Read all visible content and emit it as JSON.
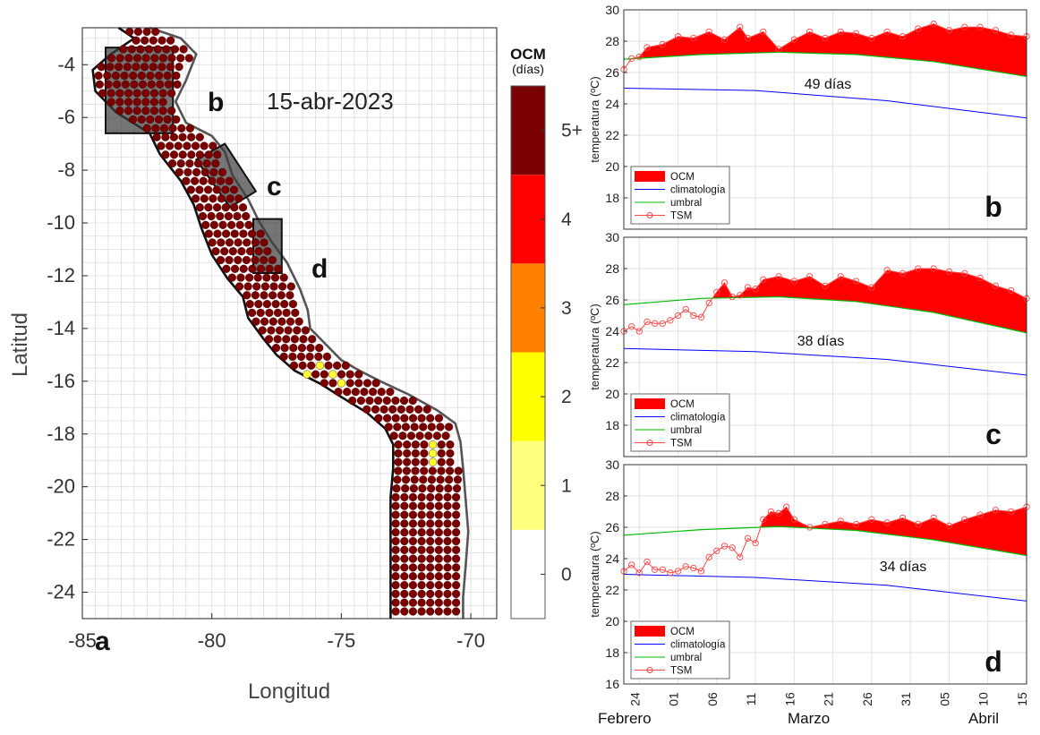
{
  "map": {
    "date_label": "15-abr-2023",
    "panel_letter": "a",
    "xlabel": "Longitud",
    "ylabel": "Latitud",
    "xlim": [
      -85,
      -69
    ],
    "ylim": [
      -25,
      -2.6
    ],
    "xticks": [
      -85,
      -80,
      -75,
      -70
    ],
    "yticks": [
      -4,
      -6,
      -8,
      -10,
      -12,
      -14,
      -16,
      -18,
      -20,
      -22,
      -24
    ],
    "dot_color": "#7a0000",
    "region_labels": [
      "b",
      "c",
      "d"
    ],
    "colorbar": {
      "title": "OCM",
      "subtitle": "(días)",
      "tick_labels": [
        "5+",
        "4",
        "3",
        "2",
        "1",
        "0"
      ],
      "colors": [
        "#ffffff",
        "#ffff80",
        "#ffff00",
        "#ff8000",
        "#ff0000",
        "#7a0000"
      ]
    }
  },
  "chart_data": [
    {
      "type": "area",
      "panel": "b",
      "annotation": "49 días",
      "ylabel": "temperatura (ºC)",
      "ylim": [
        16,
        30
      ],
      "yticks": [
        18,
        20,
        22,
        24,
        26,
        28,
        30
      ],
      "x_start": "2023-02-22",
      "x_end": "2023-04-15",
      "series": [
        {
          "name": "climatología",
          "color": "#0000ff",
          "x": [
            0,
            17,
            34,
            52
          ],
          "values": [
            25.0,
            24.85,
            24.2,
            23.1
          ]
        },
        {
          "name": "umbral",
          "color": "#00bb00",
          "x": [
            0,
            10,
            20,
            30,
            40,
            52
          ],
          "values": [
            26.85,
            27.15,
            27.3,
            27.15,
            26.7,
            25.75
          ]
        },
        {
          "name": "TSM",
          "color": "#ff4444",
          "x": [
            0,
            1,
            2,
            3,
            5,
            7,
            9,
            11,
            13,
            15,
            16,
            18,
            20,
            22,
            24,
            26,
            28,
            30,
            32,
            34,
            36,
            38,
            40,
            42,
            44,
            46,
            48,
            50,
            52
          ],
          "values": [
            26.2,
            26.9,
            27.0,
            27.6,
            27.8,
            28.3,
            28.2,
            28.6,
            28.1,
            28.9,
            28.2,
            28.6,
            27.5,
            28.1,
            28.6,
            28.2,
            28.6,
            28.5,
            28.2,
            28.6,
            28.3,
            28.8,
            29.1,
            28.7,
            28.9,
            28.9,
            28.7,
            28.4,
            28.3
          ]
        }
      ],
      "legend": [
        "OCM",
        "climatología",
        "umbral",
        "TSM"
      ]
    },
    {
      "type": "area",
      "panel": "c",
      "annotation": "38 días",
      "ylabel": "temperatura (ºC)",
      "ylim": [
        16,
        30
      ],
      "yticks": [
        18,
        20,
        22,
        24,
        26,
        28,
        30
      ],
      "x_start": "2023-02-22",
      "x_end": "2023-04-15",
      "series": [
        {
          "name": "climatología",
          "color": "#0000ff",
          "x": [
            0,
            17,
            34,
            52
          ],
          "values": [
            22.9,
            22.7,
            22.2,
            21.2
          ]
        },
        {
          "name": "umbral",
          "color": "#00bb00",
          "x": [
            0,
            10,
            20,
            30,
            40,
            52
          ],
          "values": [
            25.7,
            26.1,
            26.2,
            25.9,
            25.2,
            23.9
          ]
        },
        {
          "name": "TSM",
          "color": "#ff4444",
          "x": [
            0,
            1,
            2,
            3,
            4,
            5,
            6,
            7,
            8,
            9,
            10,
            11,
            12,
            13,
            14,
            15,
            16,
            17,
            18,
            20,
            22,
            24,
            26,
            28,
            30,
            32,
            34,
            36,
            38,
            40,
            42,
            44,
            46,
            48,
            50,
            52
          ],
          "values": [
            24.0,
            24.3,
            24.0,
            24.6,
            24.5,
            24.5,
            24.7,
            25.0,
            25.4,
            25.0,
            24.9,
            25.8,
            26.5,
            27.1,
            26.2,
            26.3,
            26.8,
            26.7,
            27.3,
            27.5,
            27.2,
            27.5,
            26.9,
            27.5,
            27.2,
            26.8,
            27.9,
            27.7,
            28.0,
            28.0,
            27.8,
            27.7,
            27.4,
            26.9,
            26.6,
            26.1
          ]
        }
      ],
      "legend": [
        "OCM",
        "climatología",
        "umbral",
        "TSM"
      ]
    },
    {
      "type": "area",
      "panel": "d",
      "annotation": "34 días",
      "ylabel": "temperatura (ºC)",
      "ylim": [
        16,
        30
      ],
      "yticks": [
        16,
        18,
        20,
        22,
        24,
        26,
        28,
        30
      ],
      "x_start": "2023-02-22",
      "x_end": "2023-04-15",
      "series": [
        {
          "name": "climatología",
          "color": "#0000ff",
          "x": [
            0,
            17,
            34,
            52
          ],
          "values": [
            23.0,
            22.8,
            22.3,
            21.3
          ]
        },
        {
          "name": "umbral",
          "color": "#00bb00",
          "x": [
            0,
            10,
            20,
            30,
            40,
            52
          ],
          "values": [
            25.5,
            25.85,
            26.05,
            25.8,
            25.2,
            24.2
          ]
        },
        {
          "name": "TSM",
          "color": "#ff4444",
          "x": [
            0,
            1,
            2,
            3,
            4,
            5,
            6,
            7,
            8,
            9,
            10,
            11,
            12,
            13,
            14,
            15,
            16,
            17,
            18,
            19,
            20,
            21,
            22,
            24,
            26,
            28,
            30,
            32,
            34,
            36,
            38,
            40,
            42,
            44,
            46,
            48,
            50,
            52
          ],
          "values": [
            23.2,
            23.6,
            23.1,
            23.8,
            23.3,
            23.3,
            23.1,
            23.2,
            23.5,
            23.4,
            23.2,
            24.1,
            24.5,
            24.8,
            24.7,
            24.1,
            25.3,
            25.0,
            26.5,
            27.0,
            26.9,
            27.3,
            26.5,
            26.0,
            26.2,
            26.4,
            26.2,
            26.5,
            26.3,
            26.6,
            26.2,
            26.6,
            26.1,
            26.5,
            26.8,
            27.1,
            27.0,
            27.3
          ]
        }
      ],
      "legend": [
        "OCM",
        "climatología",
        "umbral",
        "TSM"
      ]
    }
  ],
  "time_axis": {
    "day_ticks": [
      "24",
      "01",
      "06",
      "11",
      "16",
      "21",
      "26",
      "31",
      "05",
      "10",
      "15"
    ],
    "month_labels": [
      "Febrero",
      "Marzo",
      "Abril"
    ]
  }
}
